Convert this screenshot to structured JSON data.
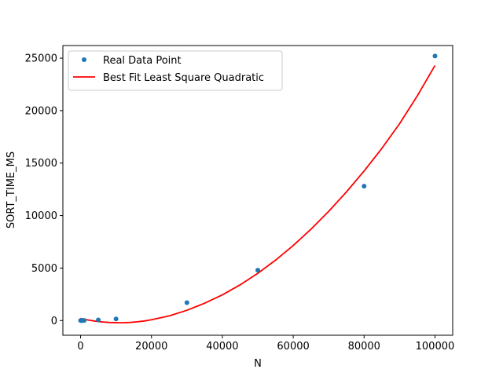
{
  "chart_data": {
    "type": "scatter",
    "title": "",
    "xlabel": "N",
    "ylabel": "SORT_TIME_MS",
    "xlim": [
      -5000,
      105000
    ],
    "ylim": [
      -1400,
      26200
    ],
    "xticks": [
      0,
      20000,
      40000,
      60000,
      80000,
      100000
    ],
    "xtick_labels": [
      "0",
      "20000",
      "40000",
      "60000",
      "80000",
      "100000"
    ],
    "yticks": [
      0,
      5000,
      10000,
      15000,
      20000,
      25000
    ],
    "ytick_labels": [
      "0",
      "5000",
      "10000",
      "15000",
      "20000",
      "25000"
    ],
    "grid": false,
    "legend_position": "top-left",
    "series": [
      {
        "name": "Real Data Point",
        "kind": "scatter",
        "color": "#1f77b4",
        "x": [
          10,
          100,
          500,
          1000,
          5000,
          10000,
          30000,
          50000,
          80000,
          100000
        ],
        "y": [
          0,
          2,
          5,
          12,
          60,
          150,
          1700,
          4800,
          12800,
          25200
        ]
      },
      {
        "name": "Best Fit Least Square Quadratic",
        "kind": "line",
        "color": "#ff0000",
        "x": [
          0,
          2000,
          4000,
          6000,
          8000,
          10000,
          11500,
          12000,
          14000,
          16000,
          18000,
          20000,
          25000,
          30000,
          35000,
          40000,
          45000,
          50000,
          55000,
          60000,
          65000,
          70000,
          75000,
          80000,
          85000,
          90000,
          95000,
          100000
        ],
        "y": [
          200,
          60,
          -50,
          -130,
          -180,
          -200,
          -210,
          -205,
          -180,
          -120,
          -40,
          80,
          440,
          980,
          1650,
          2450,
          3400,
          4500,
          5750,
          7150,
          8700,
          10400,
          12250,
          14250,
          16400,
          18750,
          21400,
          24300
        ]
      }
    ]
  }
}
